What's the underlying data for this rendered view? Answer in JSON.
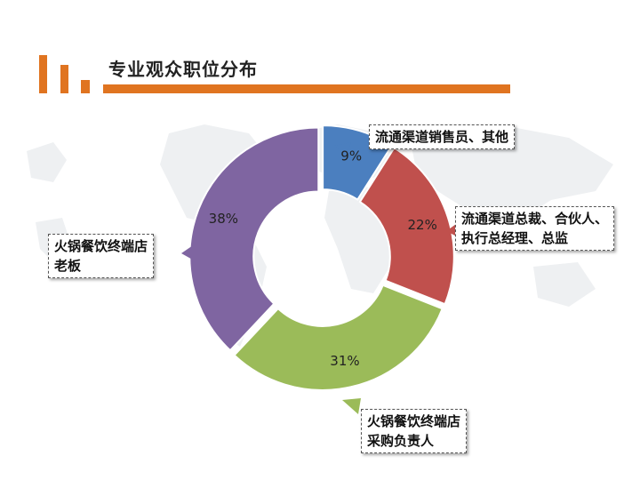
{
  "title": "专业观众职位分布",
  "colors": {
    "accent": "#E07420",
    "map": "#EEF0F2",
    "slice_purple": "#7F65A1",
    "slice_blue": "#4B7FBF",
    "slice_red": "#C0504D",
    "slice_green": "#9BBB59"
  },
  "chart_data": {
    "type": "pie",
    "hole": true,
    "slices": [
      {
        "label": "流通渠道销售员、其他",
        "value": 9,
        "value_text": "9%",
        "color": "#4B7FBF"
      },
      {
        "label": "流通渠道总裁、合伙人、执行总经理、总监",
        "value": 22,
        "value_text": "22%",
        "color": "#C0504D"
      },
      {
        "label": "火锅餐饮终端店采购负责人",
        "value": 31,
        "value_text": "31%",
        "color": "#9BBB59"
      },
      {
        "label": "火锅餐饮终端店老板",
        "value": 38,
        "value_text": "38%",
        "color": "#7F65A1"
      }
    ],
    "callouts": [
      {
        "lines": [
          "流通渠道销售员、其他"
        ]
      },
      {
        "lines": [
          "流通渠道总裁、合伙人、",
          "执行总经理、总监"
        ]
      },
      {
        "lines": [
          "火锅餐饮终端店",
          "采购负责人"
        ]
      },
      {
        "lines": [
          "火锅餐饮终端店",
          "老板"
        ]
      }
    ]
  }
}
